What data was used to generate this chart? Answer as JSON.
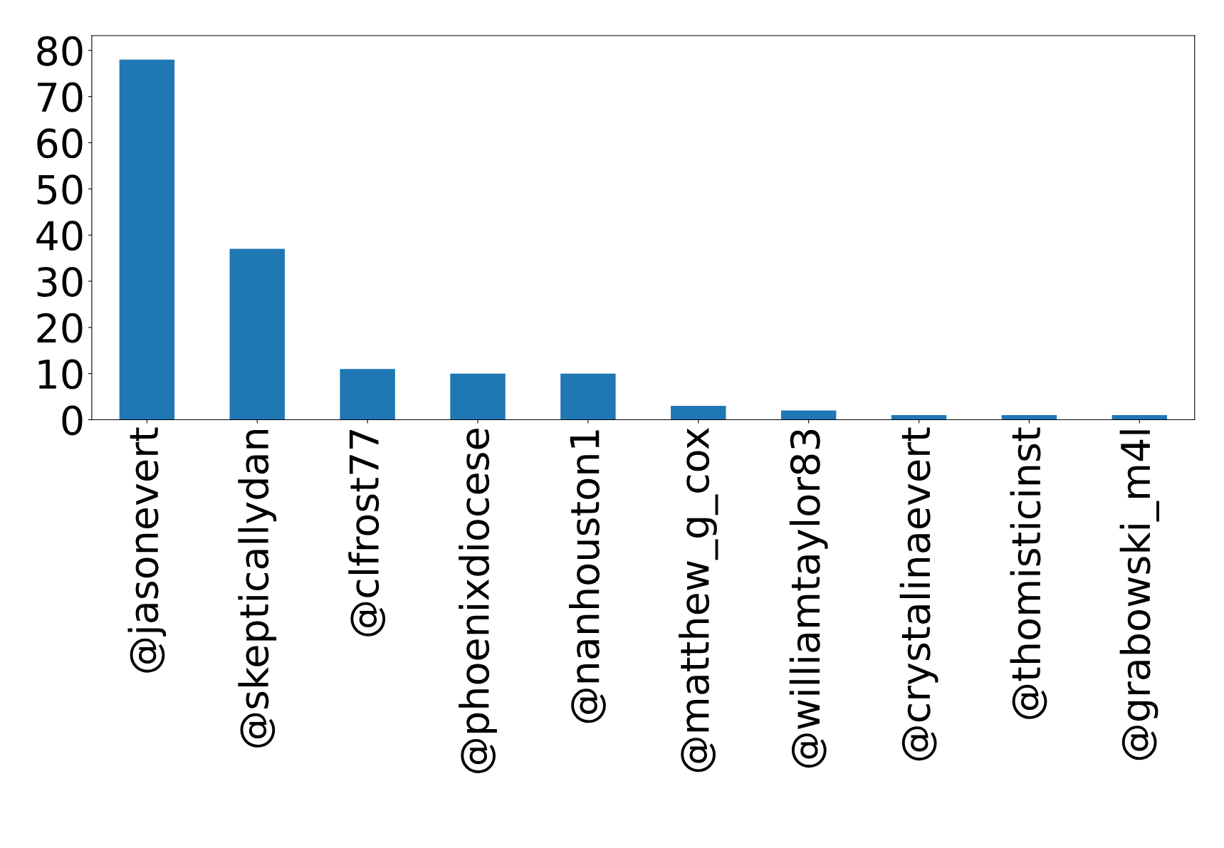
{
  "chart_data": {
    "type": "bar",
    "categories": [
      "@jasonevert",
      "@skepticallydan",
      "@clfrost77",
      "@phoenixdiocese",
      "@nanhouston1",
      "@matthew_g_cox",
      "@williamtaylor83",
      "@crystalinaevert",
      "@thomisticinst",
      "@grabowski_m4l"
    ],
    "values": [
      78,
      37,
      11,
      10,
      10,
      3,
      2,
      1,
      1,
      1
    ],
    "color": "#1f77b4",
    "ylim": [
      0,
      83.2
    ],
    "yticks": [
      0,
      10,
      20,
      30,
      40,
      50,
      60,
      70,
      80
    ],
    "grid": false,
    "legend": false
  }
}
